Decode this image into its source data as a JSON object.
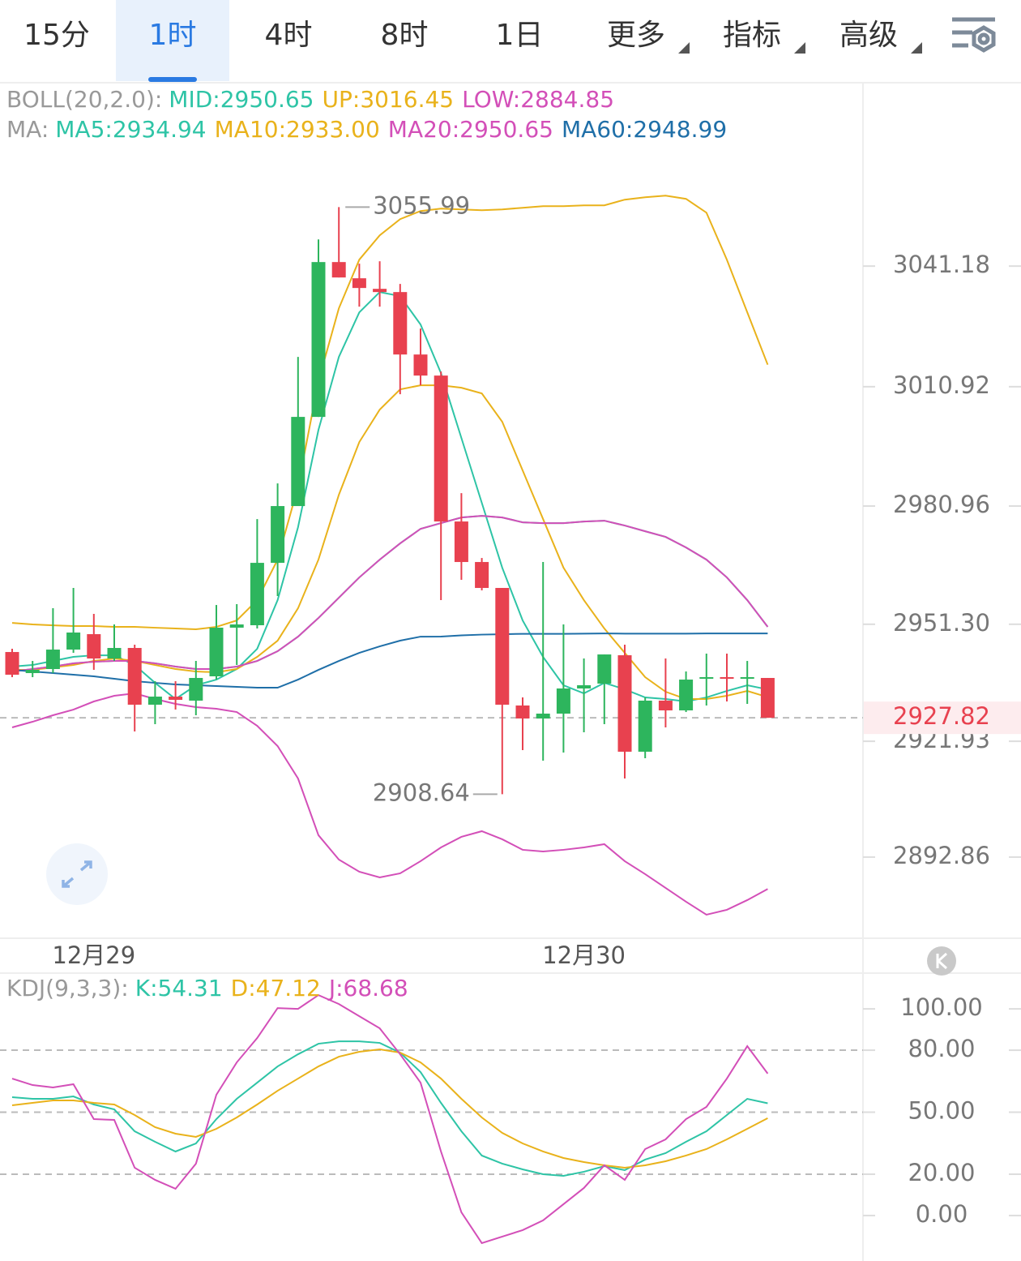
{
  "tabs": [
    {
      "label": "15分"
    },
    {
      "label": "1时",
      "active": true
    },
    {
      "label": "4时"
    },
    {
      "label": "8时"
    },
    {
      "label": "1日"
    },
    {
      "label": "更多",
      "dropdown": true
    },
    {
      "label": "指标",
      "dropdown": true
    },
    {
      "label": "高级",
      "dropdown": true
    }
  ],
  "chart_data": [
    {
      "type": "candlestick",
      "categories": [
        null,
        null,
        null,
        null,
        "12月29",
        null,
        null,
        null,
        null,
        null,
        null,
        null,
        null,
        null,
        null,
        null,
        null,
        null,
        null,
        null,
        null,
        null,
        null,
        null,
        null,
        null,
        null,
        null,
        "12月30",
        null,
        null,
        null,
        null,
        null,
        null,
        null,
        null,
        null
      ],
      "open": [
        2944.33,
        2939.04,
        2940.06,
        2944.94,
        2948.81,
        2942.7,
        2945.35,
        2931.11,
        2933.14,
        2932.13,
        2938.23,
        2950.44,
        2951.05,
        2966.71,
        2980.96,
        3003.34,
        3042.2,
        3038.13,
        3035.48,
        3034.67,
        3019.0,
        3013.71,
        2977.09,
        2966.92,
        2960.41,
        2930.91,
        2927.65,
        2928.87,
        2935.18,
        2936.4,
        2943.52,
        2919.31,
        2932.13,
        2929.68,
        2937.82,
        2938.02,
        2937.82,
        2937.82
      ],
      "close": [
        2938.63,
        2939.86,
        2944.94,
        2949.22,
        2942.7,
        2945.35,
        2931.11,
        2933.14,
        2932.33,
        2937.82,
        2950.44,
        2951.25,
        2966.71,
        2980.96,
        3003.34,
        3042.2,
        3038.33,
        3035.69,
        3034.67,
        3019.0,
        3013.71,
        2977.09,
        2966.92,
        2960.41,
        2931.11,
        2927.65,
        2928.87,
        2935.18,
        2935.99,
        2943.72,
        2919.31,
        2932.13,
        2929.68,
        2937.41,
        2938.02,
        2937.62,
        2938.02,
        2927.82
      ],
      "high": [
        2945.15,
        2942.09,
        2955.32,
        2960.41,
        2953.9,
        2951.25,
        2946.16,
        2937.01,
        2937.01,
        2942.09,
        2956.13,
        2956.34,
        2977.7,
        2986.65,
        3018.39,
        3047.89,
        3055.99,
        3041.79,
        3042.4,
        3036.7,
        3025.51,
        3014.73,
        2984.21,
        2967.93,
        2960.41,
        2932.94,
        2966.92,
        2951.25,
        2942.7,
        2943.72,
        2946.16,
        2932.94,
        2942.7,
        2939.45,
        2943.93,
        2943.93,
        2942.09,
        2937.82
      ],
      "low": [
        2938.02,
        2938.02,
        2939.04,
        2944.13,
        2939.86,
        2942.09,
        2924.4,
        2926.22,
        2929.89,
        2928.46,
        2937.41,
        2941.08,
        2950.23,
        2958.37,
        2980.96,
        3003.34,
        3038.33,
        3031.01,
        3031.01,
        3009.03,
        3011.27,
        2957.35,
        2962.44,
        2959.8,
        2908.64,
        2919.71,
        2917.07,
        2919.1,
        2924.19,
        2926.22,
        2912.59,
        2917.68,
        2925.41,
        2929.27,
        2930.91,
        2931.92,
        2931.31,
        2927.82
      ],
      "up_color": "#2db55d",
      "down_color": "#e8414f",
      "high_marker": 3055.99,
      "low_marker": 2908.64,
      "last_price": 2927.82,
      "ylim": [
        2872.9,
        3086.6
      ],
      "yticks": [
        2892.86,
        2921.93,
        {
          "value": 2951.3,
          "label": "2951.30"
        },
        2980.96,
        3010.92,
        3041.18
      ],
      "indicators": [
        {
          "label": "BOLL(20,2.0):",
          "series": [
            {
              "name": "MID:2950.65",
              "color": "#2ec4a6",
              "values": [
                2939.44,
                2940.06,
                2940.67,
                2941.48,
                2941.89,
                2942.09,
                2942.09,
                2941.48,
                2940.67,
                2940.06,
                2940.06,
                2940.67,
                2942.09,
                2944.53,
                2948.19,
                2952.87,
                2957.96,
                2963.05,
                2967.52,
                2971.59,
                2975.25,
                2976.68,
                2978.1,
                2978.51,
                2978.1,
                2976.88,
                2976.68,
                2976.68,
                2977.09,
                2977.29,
                2976.07,
                2974.64,
                2973.22,
                2970.57,
                2967.52,
                2963.05,
                2957.35,
                2950.65
              ]
            },
            {
              "name": "UP:3016.45",
              "color": "#e9b21b",
              "values": [
                2951.65,
                2951.25,
                2951.04,
                2950.84,
                2950.84,
                2950.64,
                2950.64,
                2950.43,
                2950.23,
                2950.03,
                2950.64,
                2952.26,
                2957.35,
                2967.52,
                2985.83,
                3012.28,
                3030.6,
                3042.8,
                3048.91,
                3052.98,
                3055.01,
                3055.62,
                3055.42,
                3055.21,
                3055.42,
                3055.82,
                3056.23,
                3056.23,
                3056.43,
                3056.43,
                3057.86,
                3058.47,
                3058.88,
                3058.06,
                3054.6,
                3042.8,
                3029.58,
                3016.45
              ]
            },
            {
              "name": "LOW:2884.85",
              "color": "#d34fb8",
              "values": [
                2925.41,
                2926.83,
                2928.46,
                2929.88,
                2931.92,
                2933.34,
                2933.95,
                2932.53,
                2931.31,
                2930.49,
                2930.09,
                2929.27,
                2925.81,
                2920.73,
                2912.59,
                2898.35,
                2892.24,
                2889.19,
                2887.77,
                2888.78,
                2891.84,
                2895.29,
                2897.94,
                2899.36,
                2897.33,
                2894.69,
                2894.28,
                2894.69,
                2895.29,
                2896.11,
                2891.84,
                2888.58,
                2885.12,
                2881.66,
                2878.41,
                2879.63,
                2882.07,
                2884.85
              ]
            }
          ]
        },
        {
          "label": "MA:",
          "series": [
            {
              "name": "MA5:2934.94",
              "color": "#2ec4a6",
              "values": [
                2940.67,
                2941.07,
                2942.09,
                2943.11,
                2943.51,
                2943.51,
                2941.07,
                2936.59,
                2932.53,
                2935.99,
                2937.4,
                2940.06,
                2945.14,
                2957.35,
                2975.66,
                3000.08,
                3018.39,
                3029.58,
                3034.66,
                3033.65,
                3026.53,
                3014.32,
                2998.04,
                2981.76,
                2965.49,
                2952.26,
                2943.11,
                2935.99,
                2933.95,
                2936.59,
                2934.97,
                2932.93,
                2932.53,
                2931.92,
                2932.93,
                2934.56,
                2935.99,
                2934.94
              ]
            },
            {
              "name": "MA10:2933.00",
              "color": "#e9b21b",
              "values": [
                2939.85,
                2939.85,
                2940.46,
                2941.07,
                2942.09,
                2942.7,
                2942.09,
                2941.07,
                2940.06,
                2939.44,
                2939.24,
                2940.06,
                2943.11,
                2947.18,
                2955.31,
                2967.52,
                2983.8,
                2997.02,
                3005.16,
                3010.25,
                3011.27,
                3011.27,
                3010.66,
                3009.23,
                3002.11,
                2989.9,
                2977.7,
                2965.49,
                2957.35,
                2950.23,
                2944.12,
                2938.02,
                2934.36,
                2932.53,
                2932.53,
                2933.34,
                2934.56,
                2933.0
              ]
            },
            {
              "name": "MA20:2950.65",
              "color": "#d34fb8",
              "values": [
                2939.44,
                2940.06,
                2940.67,
                2941.48,
                2941.89,
                2942.09,
                2942.09,
                2941.48,
                2940.67,
                2940.06,
                2940.06,
                2940.67,
                2942.09,
                2944.53,
                2948.19,
                2952.87,
                2957.96,
                2963.05,
                2967.52,
                2971.59,
                2975.25,
                2976.68,
                2978.1,
                2978.51,
                2978.1,
                2976.88,
                2976.68,
                2976.68,
                2977.09,
                2977.29,
                2976.07,
                2974.64,
                2973.22,
                2970.57,
                2967.52,
                2963.05,
                2957.35,
                2950.65
              ]
            },
            {
              "name": "MA60:2948.99",
              "color": "#1f6fa8",
              "values": [
                2939.85,
                2939.44,
                2939.04,
                2938.63,
                2938.22,
                2937.61,
                2937.0,
                2936.59,
                2936.19,
                2935.99,
                2935.78,
                2935.58,
                2935.38,
                2935.38,
                2937.4,
                2939.85,
                2942.09,
                2944.12,
                2945.75,
                2947.18,
                2948.19,
                2948.2,
                2948.5,
                2948.7,
                2948.8,
                2948.9,
                2948.9,
                2948.9,
                2948.95,
                2949.0,
                2948.95,
                2948.95,
                2948.95,
                2948.95,
                2949.0,
                2949.0,
                2949.0,
                2948.99
              ]
            }
          ]
        }
      ]
    },
    {
      "type": "line",
      "label": "KDJ(9,3,3):",
      "ylim": [
        -22,
        117.3
      ],
      "yticks": [
        {
          "value": 0,
          "label": "0.00"
        },
        {
          "value": 20,
          "label": "20.00",
          "dashed": true
        },
        {
          "value": 50,
          "label": "50.00",
          "dashed": true
        },
        {
          "value": 80,
          "label": "80.00",
          "dashed": true
        },
        {
          "value": 100,
          "label": "100.00"
        }
      ],
      "series": [
        {
          "name": "K:54.31",
          "color": "#2ec4a6",
          "values": [
            57.25,
            56.47,
            56.47,
            57.65,
            53.73,
            51.37,
            40.78,
            35.69,
            30.98,
            34.9,
            46.67,
            56.47,
            64.31,
            72.16,
            78.04,
            83.14,
            84.31,
            84.31,
            83.53,
            78.82,
            69.41,
            54.51,
            40.78,
            29.02,
            25.1,
            22.35,
            20.0,
            19.22,
            21.18,
            23.92,
            21.96,
            27.06,
            30.2,
            35.69,
            40.78,
            48.63,
            56.47,
            54.31
          ]
        },
        {
          "name": "D:47.12",
          "color": "#e9b21b",
          "values": [
            53.33,
            54.51,
            55.69,
            55.69,
            54.51,
            53.73,
            48.63,
            42.75,
            39.61,
            38.04,
            41.96,
            47.45,
            53.73,
            60.39,
            66.27,
            72.16,
            76.86,
            79.22,
            80.39,
            78.82,
            74.12,
            66.27,
            56.47,
            47.45,
            40.0,
            34.9,
            30.98,
            27.84,
            25.88,
            24.31,
            23.14,
            24.31,
            26.27,
            29.02,
            32.16,
            36.86,
            41.96,
            47.12
          ]
        },
        {
          "name": "J:68.68",
          "color": "#d34fb8",
          "values": [
            66.27,
            63.14,
            61.96,
            63.53,
            46.67,
            46.27,
            23.14,
            17.25,
            12.94,
            25.1,
            58.43,
            74.12,
            85.88,
            100.39,
            100.0,
            106.67,
            102.35,
            96.47,
            90.59,
            78.04,
            64.31,
            30.98,
            1.57,
            -13.33,
            -10.2,
            -7.06,
            -2.35,
            5.49,
            13.33,
            24.31,
            17.25,
            32.16,
            36.86,
            46.67,
            52.55,
            66.27,
            81.96,
            68.68
          ]
        }
      ]
    }
  ]
}
